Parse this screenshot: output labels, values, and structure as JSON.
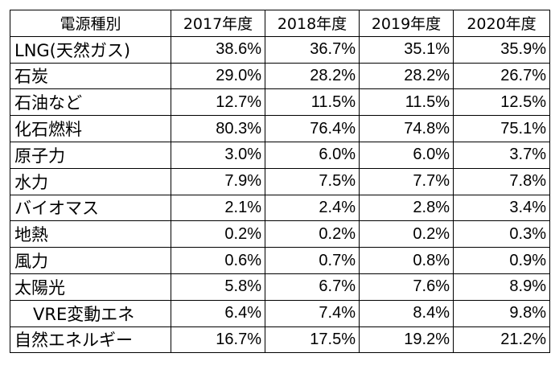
{
  "table": {
    "columns": [
      "電源種別",
      "2017年度",
      "2018年度",
      "2019年度",
      "2020年度"
    ],
    "rows": [
      {
        "label": "LNG(天然ガス)",
        "indent": false,
        "values": [
          "38.6%",
          "36.7%",
          "35.1%",
          "35.9%"
        ]
      },
      {
        "label": "石炭",
        "indent": false,
        "values": [
          "29.0%",
          "28.2%",
          "28.2%",
          "26.7%"
        ]
      },
      {
        "label": "石油など",
        "indent": false,
        "values": [
          "12.7%",
          "11.5%",
          "11.5%",
          "12.5%"
        ]
      },
      {
        "label": "化石燃料",
        "indent": false,
        "values": [
          "80.3%",
          "76.4%",
          "74.8%",
          "75.1%"
        ]
      },
      {
        "label": "原子力",
        "indent": false,
        "values": [
          "3.0%",
          "6.0%",
          "6.0%",
          "3.7%"
        ]
      },
      {
        "label": "水力",
        "indent": false,
        "values": [
          "7.9%",
          "7.5%",
          "7.7%",
          "7.8%"
        ]
      },
      {
        "label": "バイオマス",
        "indent": false,
        "values": [
          "2.1%",
          "2.4%",
          "2.8%",
          "3.4%"
        ]
      },
      {
        "label": "地熱",
        "indent": false,
        "values": [
          "0.2%",
          "0.2%",
          "0.2%",
          "0.3%"
        ]
      },
      {
        "label": "風力",
        "indent": false,
        "values": [
          "0.6%",
          "0.7%",
          "0.8%",
          "0.9%"
        ]
      },
      {
        "label": "太陽光",
        "indent": false,
        "values": [
          "5.8%",
          "6.7%",
          "7.6%",
          "8.9%"
        ]
      },
      {
        "label": "VRE変動エネ",
        "indent": true,
        "values": [
          "6.4%",
          "7.4%",
          "8.4%",
          "9.8%"
        ]
      },
      {
        "label": "自然エネルギー",
        "indent": false,
        "values": [
          "16.7%",
          "17.5%",
          "19.2%",
          "21.2%"
        ]
      }
    ]
  }
}
